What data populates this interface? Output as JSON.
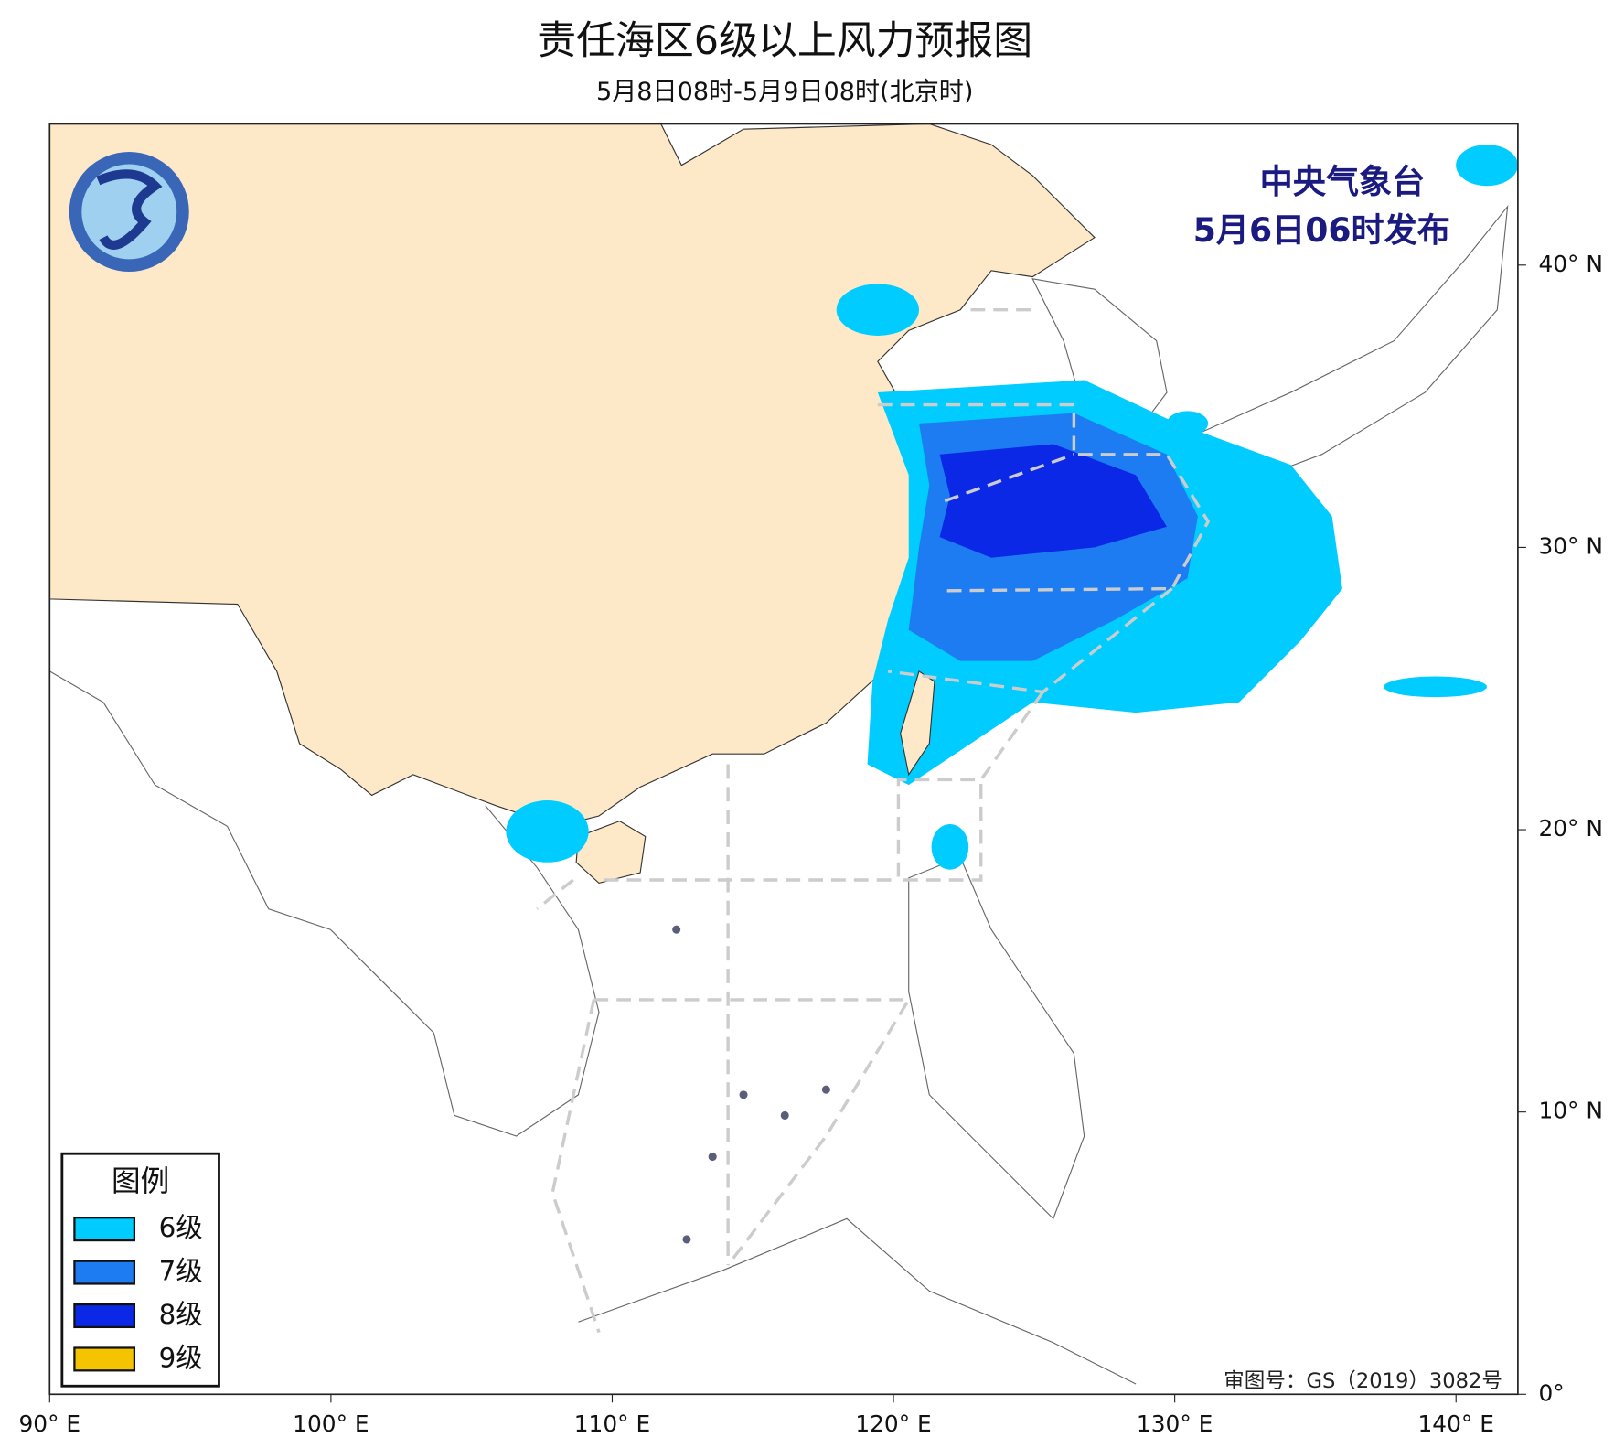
{
  "header": {
    "title": "责任海区6级以上风力预报图",
    "subtitle": "5月8日08时-5月9日08时(北京时)"
  },
  "issuer": [
    "中央气象台",
    "5月6日06时发布"
  ],
  "map": {
    "xlim": [
      90,
      142.2
    ],
    "ylim": [
      0,
      45
    ],
    "xticks": [
      {
        "value": 90,
        "label": "90° E"
      },
      {
        "value": 100,
        "label": "100° E"
      },
      {
        "value": 110,
        "label": "110° E"
      },
      {
        "value": 120,
        "label": "120° E"
      },
      {
        "value": 130,
        "label": "130° E"
      },
      {
        "value": 140,
        "label": "140° E"
      }
    ],
    "yticks": [
      {
        "value": 0,
        "label": "0°"
      },
      {
        "value": 10,
        "label": "10° N"
      },
      {
        "value": 20,
        "label": "20° N"
      },
      {
        "value": 30,
        "label": "30° N"
      },
      {
        "value": 40,
        "label": "40° N"
      }
    ]
  },
  "legend": {
    "title": "图例",
    "items": [
      {
        "label": "6级",
        "color": "#00ccff"
      },
      {
        "label": "7级",
        "color": "#1e7cf2"
      },
      {
        "label": "8级",
        "color": "#0a28e6"
      },
      {
        "label": "9级",
        "color": "#f5c400"
      }
    ]
  },
  "review_number": "审图号：GS（2019）3082号"
}
